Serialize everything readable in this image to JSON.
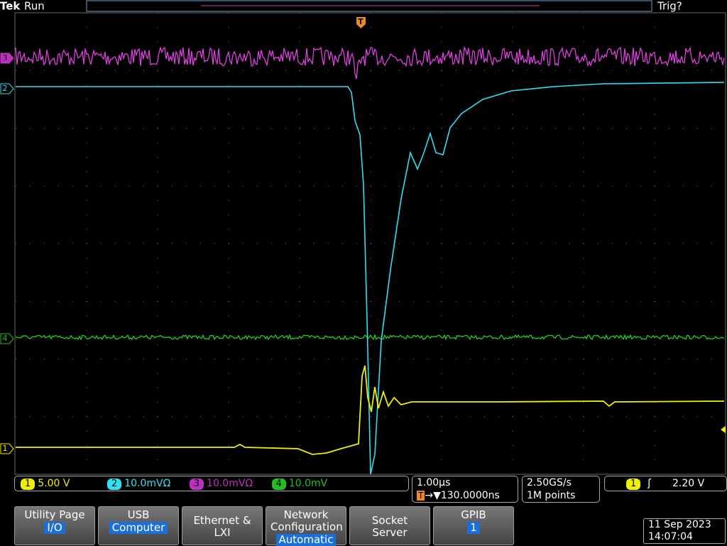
{
  "header": {
    "brand": "Tek",
    "state": "Run",
    "trigger_status": "Trig?",
    "trigger_marker": "T"
  },
  "channel_markers": [
    "3",
    "2",
    "4",
    "1"
  ],
  "channels": [
    {
      "number": "1",
      "scale": "5.00 V"
    },
    {
      "number": "2",
      "scale": "10.0mVΩ"
    },
    {
      "number": "3",
      "scale": "10.0mVΩ"
    },
    {
      "number": "4",
      "scale": "10.0mV"
    }
  ],
  "timebase": {
    "scale": "1.00µs",
    "position_marker": "T",
    "position": "→▼130.0000ns"
  },
  "acquisition": {
    "sample_rate": "2.50GS/s",
    "record_length": "1M points"
  },
  "trigger": {
    "source": "1",
    "level": "2.20 V"
  },
  "menu": [
    {
      "label": "Utility Page",
      "value": "I/O"
    },
    {
      "label": "USB",
      "value": "Computer"
    },
    {
      "label": "Ethernet & LXI"
    },
    {
      "label": "Network Configuration",
      "value": "Automatic"
    },
    {
      "label": "Socket Server"
    },
    {
      "label": "GPIB",
      "value": "1"
    }
  ],
  "datetime": {
    "date": "11 Sep 2023",
    "time": "14:07:04"
  }
}
